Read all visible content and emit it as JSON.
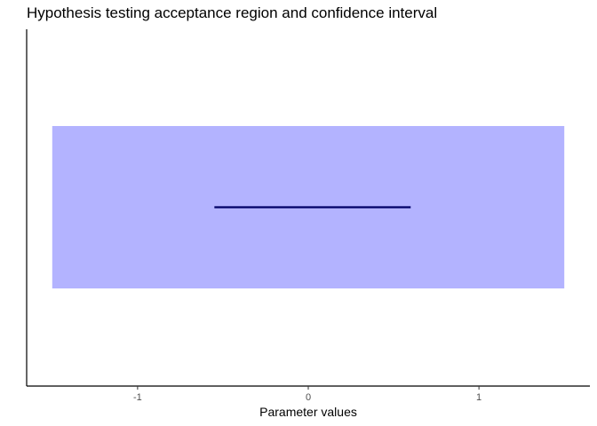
{
  "chart_data": {
    "type": "interval",
    "title": "Hypothesis testing acceptance region and confidence interval",
    "xlabel": "Parameter values",
    "ylabel": "",
    "xlim": [
      -1.65,
      1.65
    ],
    "x_ticks": [
      -1,
      0,
      1
    ],
    "x_tick_labels": [
      "-1",
      "0",
      "1"
    ],
    "grid": false,
    "legend": "none",
    "acceptance_region": {
      "x_start": -1.5,
      "x_end": 1.5,
      "color": "#b3b3ff"
    },
    "confidence_interval": {
      "x_start": -0.55,
      "x_end": 0.6,
      "color": "#000066"
    }
  }
}
